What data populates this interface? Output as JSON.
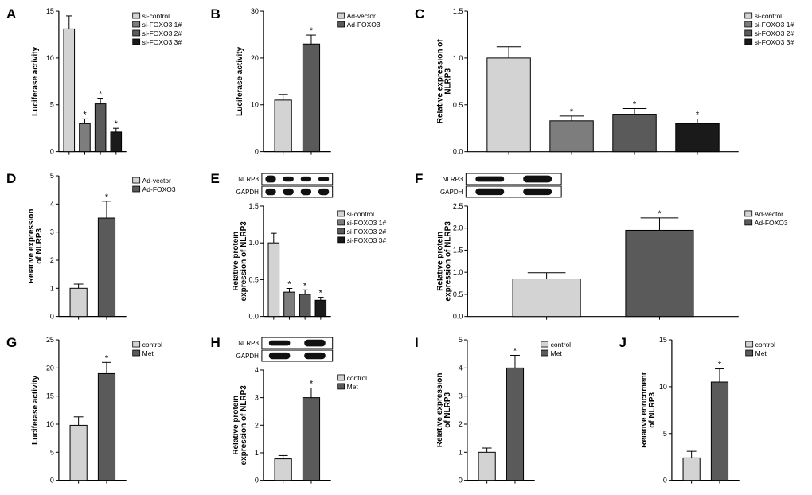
{
  "figure": {
    "background_color": "#ffffff",
    "panel_letter_fontsize": 17,
    "axis_label_fontsize": 10,
    "tick_label_fontsize": 9,
    "legend_fontsize": 8.5,
    "star_fontsize": 11,
    "blot_label_fontsize": 8
  },
  "colors": {
    "axis": "#000000",
    "text": "#000000",
    "bar_stroke": "#000000",
    "group4": [
      "#d3d3d3",
      "#7d7d7d",
      "#5a5a5a",
      "#1a1a1a"
    ],
    "group2": [
      "#d3d3d3",
      "#5a5a5a"
    ],
    "blot_bg": "#3a3a3a",
    "blot_band": "#111111"
  },
  "legends": {
    "si4": [
      "si-control",
      "si-FOXO3 1#",
      "si-FOXO3 2#",
      "si-FOXO3 3#"
    ],
    "ad2": [
      "Ad-vector",
      "Ad-FOXO3"
    ],
    "ctrlmet": [
      "control",
      "Met"
    ]
  },
  "panels": [
    {
      "letter": "A",
      "ylabel": "Luciferase activity",
      "ylim": [
        0,
        15
      ],
      "ytick_step": 5,
      "group": "si4",
      "values": [
        13.1,
        3.0,
        5.1,
        2.1
      ],
      "errors": [
        1.4,
        0.5,
        0.6,
        0.4
      ],
      "stars": [
        false,
        true,
        true,
        true
      ],
      "bar_width": 0.16,
      "legend_pos": "right"
    },
    {
      "letter": "B",
      "ylabel": "Luciferase activity",
      "ylim": [
        0,
        30
      ],
      "ytick_step": 10,
      "group": "ad2",
      "values": [
        11.0,
        23.0
      ],
      "errors": [
        1.2,
        1.9
      ],
      "stars": [
        false,
        true
      ],
      "bar_width": 0.25,
      "legend_pos": "right"
    },
    {
      "letter": "C",
      "ylabel": "Relative expression of\nNLRP3",
      "ylim": [
        0,
        1.5
      ],
      "ytick_step": 0.5,
      "group": "si4",
      "values": [
        1.0,
        0.33,
        0.4,
        0.3
      ],
      "errors": [
        0.12,
        0.05,
        0.06,
        0.05
      ],
      "stars": [
        false,
        true,
        true,
        true
      ],
      "bar_width": 0.16,
      "legend_pos": "right"
    },
    {
      "letter": "D",
      "ylabel": "Relative expression\nof NLRP3",
      "ylim": [
        0,
        5
      ],
      "ytick_step": 1,
      "group": "ad2",
      "values": [
        1.0,
        3.5
      ],
      "errors": [
        0.15,
        0.6
      ],
      "stars": [
        false,
        true
      ],
      "bar_width": 0.25,
      "legend_pos": "right"
    },
    {
      "letter": "E",
      "ylabel": "Relative protein\nexpression of NLRP3",
      "ylim": [
        0,
        1.5
      ],
      "ytick_step": 0.5,
      "group": "si4",
      "values": [
        1.0,
        0.33,
        0.3,
        0.22
      ],
      "errors": [
        0.13,
        0.05,
        0.06,
        0.04
      ],
      "stars": [
        false,
        true,
        true,
        true
      ],
      "bar_width": 0.16,
      "legend_pos": "right",
      "blot": {
        "rows": [
          "NLRP3",
          "GAPDH"
        ],
        "lanes": 4,
        "intensities": [
          [
            0.95,
            0.35,
            0.32,
            0.22
          ],
          [
            0.85,
            0.85,
            0.85,
            0.85
          ]
        ]
      }
    },
    {
      "letter": "F",
      "ylabel": "Relative protein\nexpression of NLRP3",
      "ylim": [
        0,
        2.5
      ],
      "ytick_step": 0.5,
      "group": "ad2",
      "values": [
        0.85,
        1.95
      ],
      "errors": [
        0.14,
        0.28
      ],
      "stars": [
        false,
        true
      ],
      "bar_width": 0.25,
      "legend_pos": "right",
      "blot": {
        "rows": [
          "NLRP3",
          "GAPDH"
        ],
        "lanes": 2,
        "intensities": [
          [
            0.45,
            0.92
          ],
          [
            0.85,
            0.85
          ]
        ]
      }
    },
    {
      "letter": "G",
      "ylabel": "Luciferase activity",
      "ylim": [
        0,
        25
      ],
      "ytick_step": 5,
      "group": "ctrlmet",
      "values": [
        9.8,
        19.0
      ],
      "errors": [
        1.5,
        2.0
      ],
      "stars": [
        false,
        true
      ],
      "bar_width": 0.25,
      "legend_pos": "right"
    },
    {
      "letter": "H",
      "ylabel": "Relative protein\nexpression of NLRP3",
      "ylim": [
        0,
        4
      ],
      "ytick_step": 1,
      "group": "ctrlmet",
      "values": [
        0.78,
        3.0
      ],
      "errors": [
        0.12,
        0.35
      ],
      "stars": [
        false,
        true
      ],
      "bar_width": 0.25,
      "legend_pos": "right",
      "blot": {
        "rows": [
          "NLRP3",
          "GAPDH"
        ],
        "lanes": 2,
        "intensities": [
          [
            0.4,
            0.9
          ],
          [
            0.85,
            0.85
          ]
        ]
      }
    },
    {
      "letter": "I",
      "ylabel": "Relative expression\nof NLRP3",
      "ylim": [
        0,
        5
      ],
      "ytick_step": 1,
      "group": "ctrlmet",
      "values": [
        1.0,
        4.0
      ],
      "errors": [
        0.15,
        0.45
      ],
      "stars": [
        false,
        true
      ],
      "bar_width": 0.25,
      "legend_pos": "right"
    },
    {
      "letter": "J",
      "ylabel": "Relative enrichment\nof NLRP3",
      "ylim": [
        0,
        15
      ],
      "ytick_step": 5,
      "group": "ctrlmet",
      "values": [
        2.4,
        10.5
      ],
      "errors": [
        0.7,
        1.4
      ],
      "stars": [
        false,
        true
      ],
      "bar_width": 0.25,
      "legend_pos": "right"
    }
  ]
}
